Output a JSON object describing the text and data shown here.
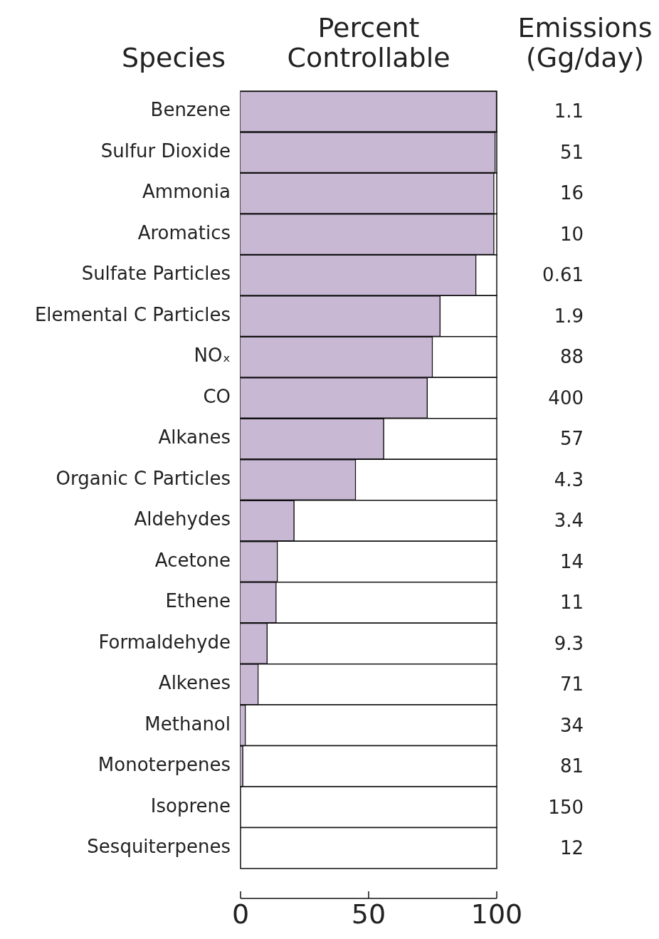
{
  "chart_data": {
    "type": "bar",
    "orientation": "horizontal",
    "xlabel": "Percent Controllable",
    "ylabel": "Species",
    "y2label": "Emissions (Gg/day)",
    "categories": [
      "Benzene",
      "Sulfur Dioxide",
      "Ammonia",
      "Aromatics",
      "Sulfate Particles",
      "Elemental C Particles",
      "NOₓ",
      "CO",
      "Alkanes",
      "Organic C Particles",
      "Aldehydes",
      "Acetone",
      "Ethene",
      "Formaldehyde",
      "Alkenes",
      "Methanol",
      "Monoterpenes",
      "Isoprene",
      "Sesquiterpenes"
    ],
    "values": [
      100,
      99.5,
      99,
      99,
      92,
      78,
      75,
      73,
      56,
      45,
      21,
      14.5,
      14,
      10.5,
      7,
      2,
      1,
      0,
      0
    ],
    "y2_categories": [
      "1.1",
      "51",
      "16",
      "10",
      "0.61",
      "1.9",
      "88",
      "400",
      "57",
      "4.3",
      "3.4",
      "14",
      "11",
      "9.3",
      "71",
      "34",
      "81",
      "150",
      "12"
    ],
    "color": "#c8b8d4",
    "xlim": [
      0,
      100
    ],
    "xticks": [
      0,
      50,
      100
    ]
  }
}
